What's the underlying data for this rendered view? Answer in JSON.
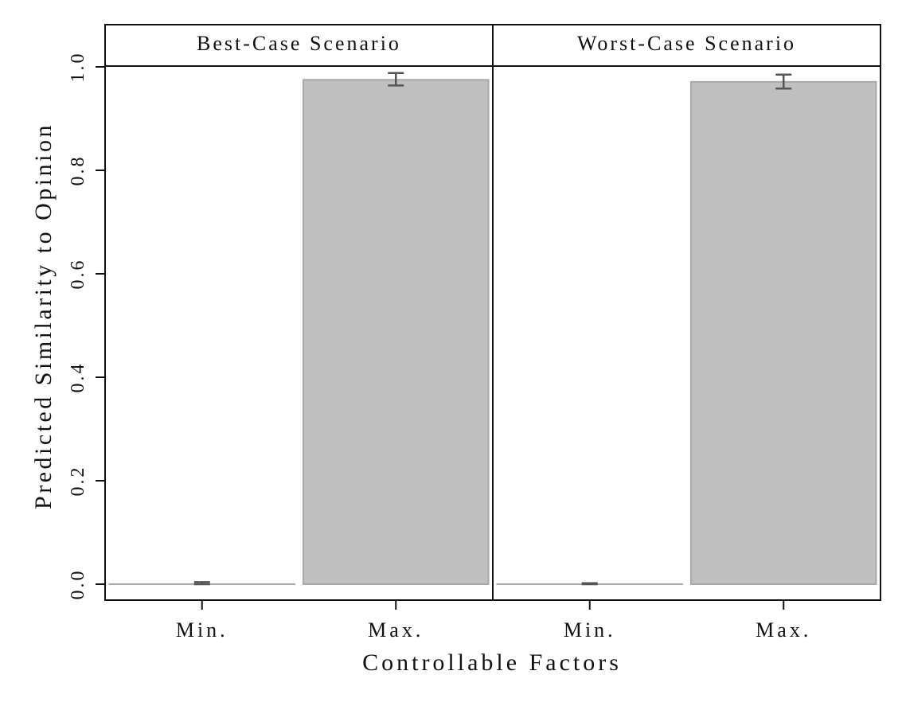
{
  "chart_data": {
    "type": "bar",
    "xlabel": "Controllable Factors",
    "ylabel": "Predicted Similarity to Opinion",
    "ylim": [
      -0.03,
      1.08
    ],
    "yticks": [
      0.0,
      0.2,
      0.4,
      0.6,
      0.8,
      1.0
    ],
    "ytick_labels": [
      "0.0",
      "0.2",
      "0.4",
      "0.6",
      "0.8",
      "1.0"
    ],
    "categories": [
      "Min.",
      "Max."
    ],
    "panels": [
      {
        "title": "Best-Case Scenario",
        "values": [
          0.0,
          0.975
        ],
        "ci_low": [
          0.0,
          0.964
        ],
        "ci_high": [
          0.004,
          0.988
        ]
      },
      {
        "title": "Worst-Case Scenario",
        "values": [
          0.0,
          0.971
        ],
        "ci_low": [
          0.0,
          0.958
        ],
        "ci_high": [
          0.002,
          0.985
        ]
      }
    ],
    "colors": {
      "bar_fill": "#c0c0c0",
      "bar_stroke": "#a8a8a8",
      "errorbar": "#555555",
      "frame": "#111111"
    },
    "grid": false,
    "legend": "none"
  }
}
